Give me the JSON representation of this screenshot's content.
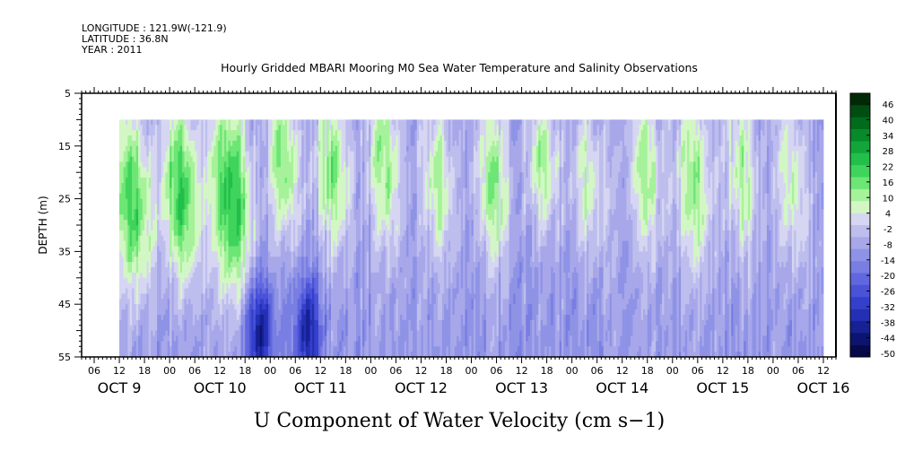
{
  "meta": {
    "longitude": "LONGITUDE : 121.9W(-121.9)",
    "latitude": "LATITUDE : 36.8N",
    "year": "YEAR : 2011"
  },
  "chart_data": {
    "type": "heatmap",
    "title": "Hourly Gridded MBARI Mooring M0 Sea Water Temperature and Salinity Observations",
    "xlabel": "U Component of Water Velocity (cm s−1)",
    "ylabel": "DEPTH (m)",
    "x_unit": "hours since OCT 9 00:00",
    "xlim": [
      3,
      183
    ],
    "data_start_hour": 12,
    "data_end_hour": 180,
    "ylim": [
      5,
      55
    ],
    "y_ticks": [
      5,
      15,
      25,
      35,
      45,
      55
    ],
    "y_tick_labels": [
      "5",
      "15",
      "25",
      "35",
      "45",
      "55"
    ],
    "data_depth_range": [
      10,
      55
    ],
    "hour_tick_labels": [
      "06",
      "12",
      "18",
      "00"
    ],
    "hour_ticks": [
      6,
      12,
      18,
      24,
      30,
      36,
      42,
      48,
      54,
      60,
      66,
      72,
      78,
      84,
      90,
      96,
      102,
      108,
      114,
      120,
      126,
      132,
      138,
      144,
      150,
      156,
      162,
      168,
      174,
      180
    ],
    "date_labels": [
      {
        "label": "OCT  9",
        "hour": 12
      },
      {
        "label": "OCT 10",
        "hour": 36
      },
      {
        "label": "OCT 11",
        "hour": 60
      },
      {
        "label": "OCT 12",
        "hour": 84
      },
      {
        "label": "OCT 13",
        "hour": 108
      },
      {
        "label": "OCT 14",
        "hour": 132
      },
      {
        "label": "OCT 15",
        "hour": 156
      },
      {
        "label": "OCT 16",
        "hour": 180
      }
    ],
    "colorbar": {
      "tick_labels": [
        "46",
        "40",
        "34",
        "28",
        "22",
        "16",
        "10",
        "4",
        "-2",
        "-8",
        "-14",
        "-20",
        "-26",
        "-32",
        "-38",
        "-44",
        "-50"
      ],
      "range": [
        -50,
        50
      ],
      "step": 6,
      "colors": [
        "#002a06",
        "#004d12",
        "#006b1d",
        "#068a2a",
        "#12a63a",
        "#22bf4a",
        "#3fd45c",
        "#6ce675",
        "#a6f29a",
        "#d3f7c4",
        "#d6d6f2",
        "#bebeee",
        "#a7a7ea",
        "#8f93e6",
        "#787ee2",
        "#6167de",
        "#4a52d8",
        "#3440cc",
        "#2430b4",
        "#172194",
        "#0c1470",
        "#060a4a"
      ]
    },
    "phases": [
      {
        "hour": 14.5,
        "amp": 30,
        "width": 4.5,
        "depth_center": 26,
        "depth_spread": 18
      },
      {
        "hour": 26.0,
        "amp": 32,
        "width": 4.5,
        "depth_center": 24,
        "depth_spread": 18
      },
      {
        "hour": 38.0,
        "amp": 34,
        "width": 5.0,
        "depth_center": 25,
        "depth_spread": 20
      },
      {
        "hour": 45.5,
        "amp": -30,
        "width": 3.5,
        "depth_center": 50,
        "depth_spread": 10
      },
      {
        "hour": 51.0,
        "amp": 26,
        "width": 3.5,
        "depth_center": 18,
        "depth_spread": 16
      },
      {
        "hour": 62.5,
        "amp": 24,
        "width": 4.5,
        "depth_center": 20,
        "depth_spread": 16
      },
      {
        "hour": 57.0,
        "amp": -28,
        "width": 3.0,
        "depth_center": 50,
        "depth_spread": 10
      },
      {
        "hour": 75.0,
        "amp": 22,
        "width": 4.0,
        "depth_center": 18,
        "depth_spread": 18
      },
      {
        "hour": 87.5,
        "amp": 20,
        "width": 4.0,
        "depth_center": 22,
        "depth_spread": 16
      },
      {
        "hour": 100.5,
        "amp": 22,
        "width": 4.5,
        "depth_center": 22,
        "depth_spread": 16
      },
      {
        "hour": 112.5,
        "amp": 20,
        "width": 4.0,
        "depth_center": 18,
        "depth_spread": 14
      },
      {
        "hour": 123.5,
        "amp": 18,
        "width": 4.5,
        "depth_center": 22,
        "depth_spread": 16
      },
      {
        "hour": 137.0,
        "amp": 20,
        "width": 4.0,
        "depth_center": 20,
        "depth_spread": 16
      },
      {
        "hour": 148.5,
        "amp": 22,
        "width": 4.5,
        "depth_center": 22,
        "depth_spread": 18
      },
      {
        "hour": 160.0,
        "amp": 20,
        "width": 4.0,
        "depth_center": 20,
        "depth_spread": 18
      },
      {
        "hour": 172.0,
        "amp": 18,
        "width": 4.0,
        "depth_center": 22,
        "depth_spread": 18
      }
    ],
    "background_value": -10
  }
}
